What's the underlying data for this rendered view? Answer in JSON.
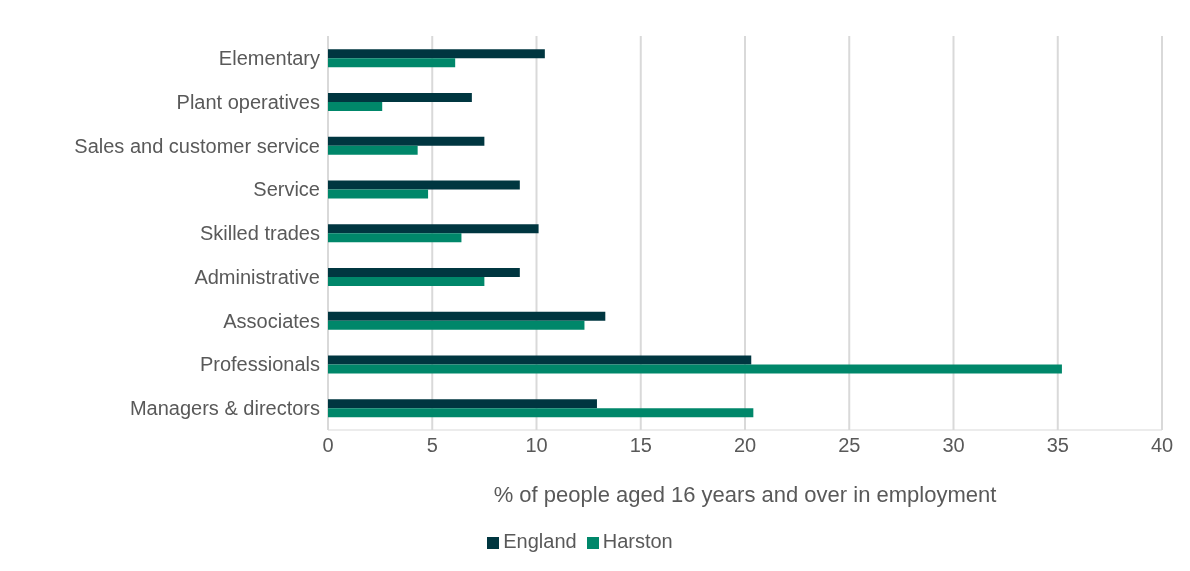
{
  "chart_data": {
    "type": "bar",
    "orientation": "horizontal",
    "categories": [
      "Elementary",
      "Plant operatives",
      "Sales and customer service",
      "Service",
      "Skilled trades",
      "Administrative",
      "Associates",
      "Professionals",
      "Managers & directors"
    ],
    "series": [
      {
        "name": "England",
        "color": "#003640",
        "values": [
          10.4,
          6.9,
          7.5,
          9.2,
          10.1,
          9.2,
          13.3,
          20.3,
          12.9
        ]
      },
      {
        "name": "Harston",
        "color": "#00876a",
        "values": [
          6.1,
          2.6,
          4.3,
          4.8,
          6.4,
          7.5,
          12.3,
          35.2,
          20.4
        ]
      }
    ],
    "xlabel": "% of people aged 16 years and over in employment",
    "xlim": [
      0,
      40
    ],
    "xticks": [
      0,
      5,
      10,
      15,
      20,
      25,
      30,
      35,
      40
    ],
    "grid": "x",
    "legend": "bottom"
  }
}
